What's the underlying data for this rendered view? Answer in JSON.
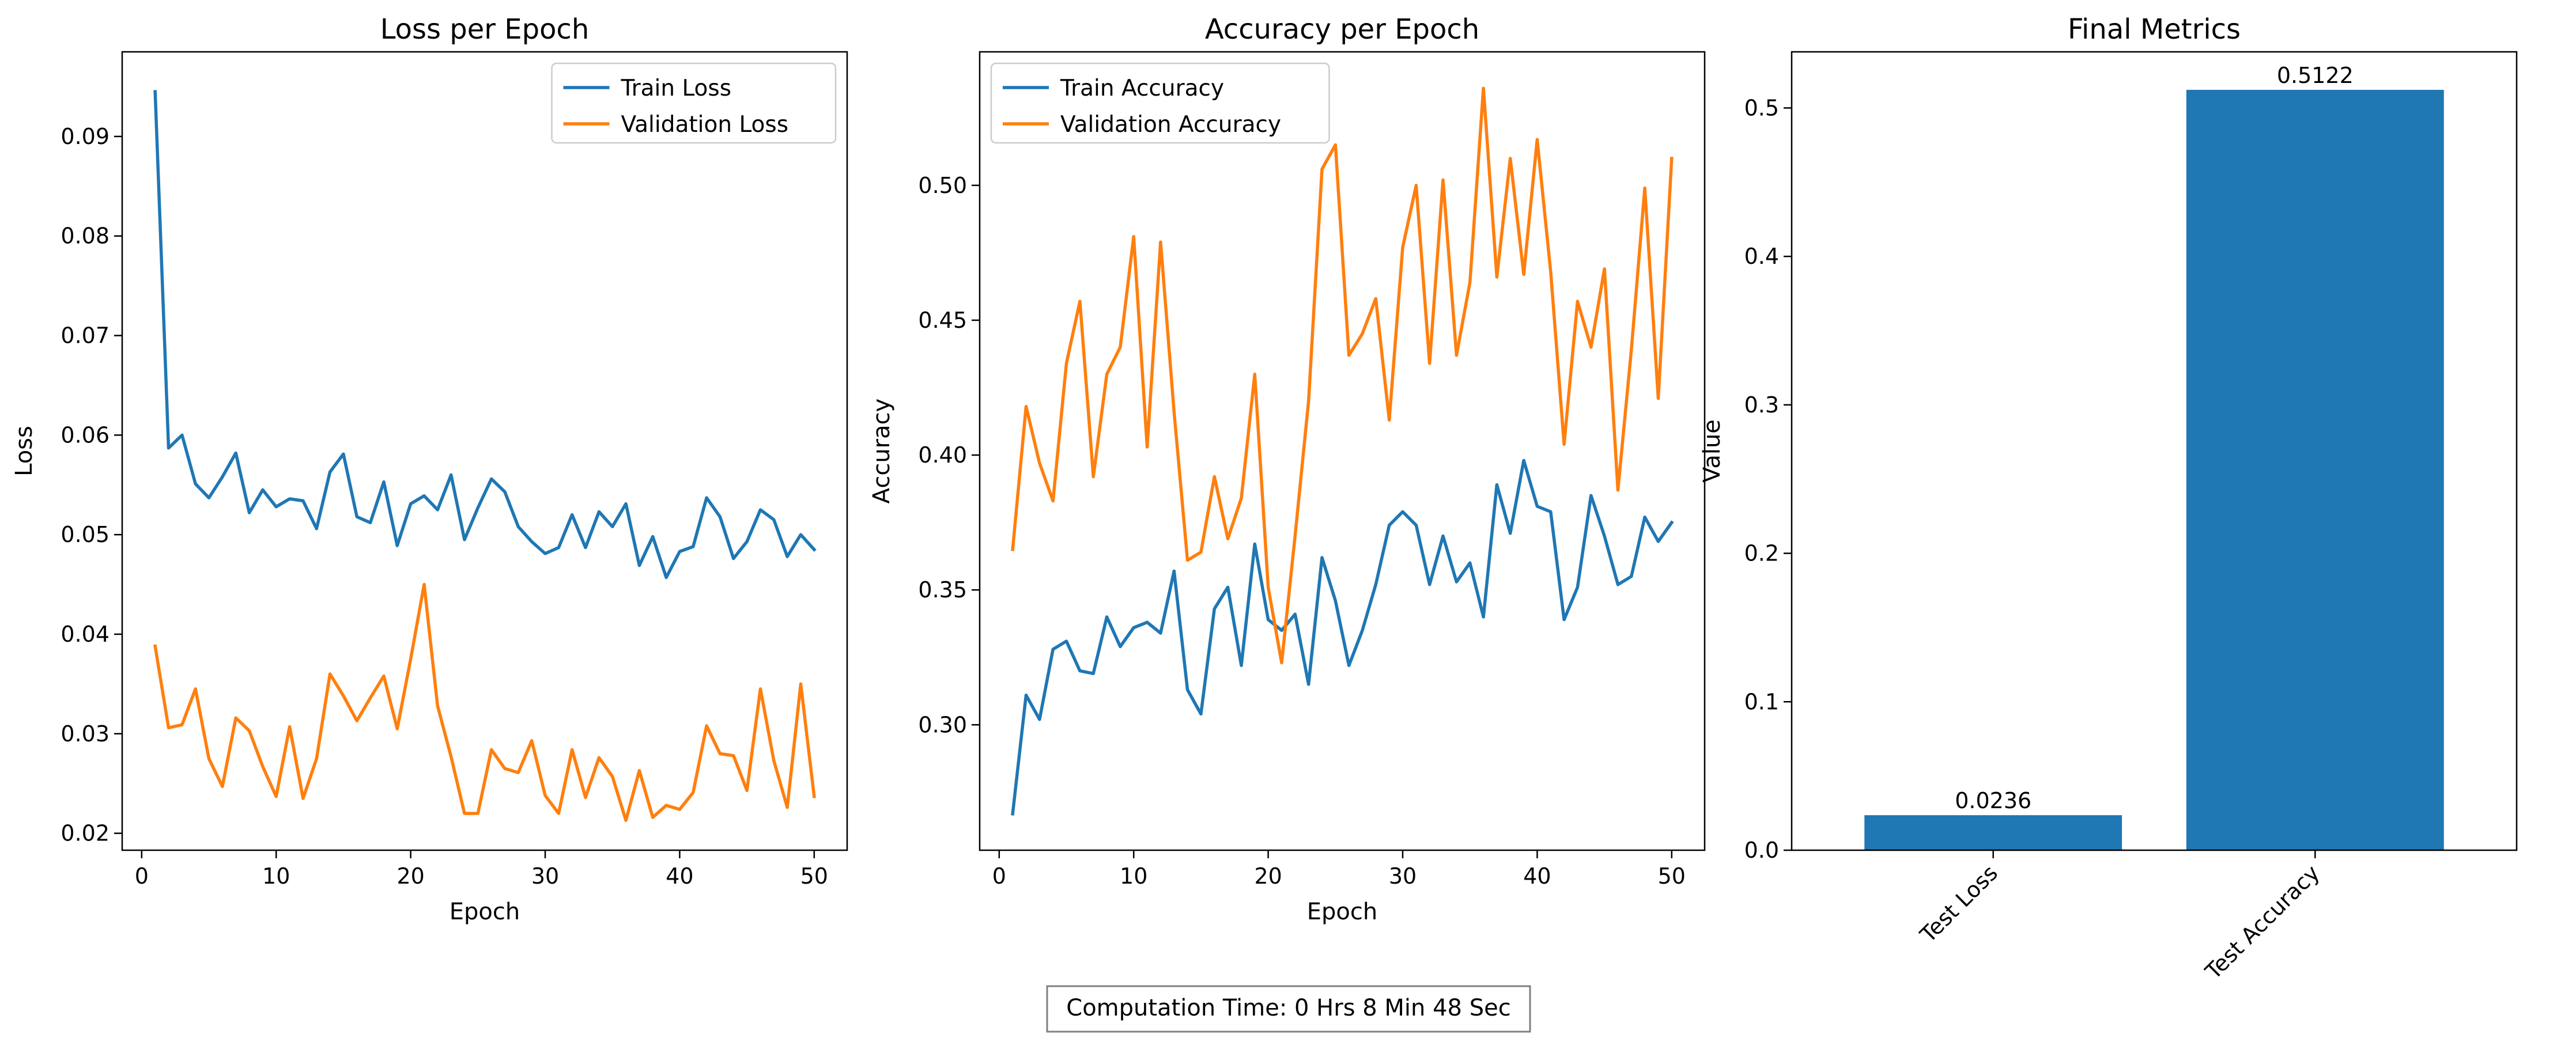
{
  "chart_data": [
    {
      "type": "line",
      "title": "Loss per Epoch",
      "xlabel": "Epoch",
      "ylabel": "Loss",
      "xlim": [
        -1.45,
        52.45
      ],
      "ylim": [
        0.0183,
        0.0985
      ],
      "xticks": [
        0,
        10,
        20,
        30,
        40,
        50
      ],
      "yticks": [
        0.02,
        0.03,
        0.04,
        0.05,
        0.06,
        0.07,
        0.08,
        0.09
      ],
      "legend": "top-right",
      "x": [
        1,
        2,
        3,
        4,
        5,
        6,
        7,
        8,
        9,
        10,
        11,
        12,
        13,
        14,
        15,
        16,
        17,
        18,
        19,
        20,
        21,
        22,
        23,
        24,
        25,
        26,
        27,
        28,
        29,
        30,
        31,
        32,
        33,
        34,
        35,
        36,
        37,
        38,
        39,
        40,
        41,
        42,
        43,
        44,
        45,
        46,
        47,
        48,
        49,
        50
      ],
      "series": [
        {
          "name": "Train Loss",
          "color": "#1f77b4",
          "values": [
            0.0945,
            0.0587,
            0.06,
            0.0551,
            0.0537,
            0.0558,
            0.0582,
            0.0522,
            0.0545,
            0.0528,
            0.0536,
            0.0534,
            0.0506,
            0.0563,
            0.0581,
            0.0518,
            0.0512,
            0.0553,
            0.0489,
            0.0531,
            0.0539,
            0.0525,
            0.056,
            0.0495,
            0.0527,
            0.0556,
            0.0543,
            0.0508,
            0.0493,
            0.0481,
            0.0487,
            0.052,
            0.0487,
            0.0523,
            0.0508,
            0.0531,
            0.0469,
            0.0498,
            0.0457,
            0.0483,
            0.0488,
            0.0537,
            0.0518,
            0.0476,
            0.0493,
            0.0525,
            0.0515,
            0.0478,
            0.05,
            0.0485
          ]
        },
        {
          "name": "Validation Loss",
          "color": "#ff7f0e",
          "values": [
            0.0388,
            0.0306,
            0.0309,
            0.0345,
            0.0275,
            0.0247,
            0.0316,
            0.0303,
            0.0267,
            0.0237,
            0.0307,
            0.0235,
            0.0275,
            0.036,
            0.0338,
            0.0313,
            0.0336,
            0.0358,
            0.0305,
            0.0375,
            0.045,
            0.0328,
            0.0277,
            0.022,
            0.022,
            0.0284,
            0.0265,
            0.0261,
            0.0293,
            0.0238,
            0.022,
            0.0284,
            0.0236,
            0.0276,
            0.0257,
            0.0213,
            0.0263,
            0.0216,
            0.0228,
            0.0224,
            0.0241,
            0.0308,
            0.028,
            0.0278,
            0.0243,
            0.0345,
            0.0273,
            0.0226,
            0.035,
            0.0237
          ]
        }
      ]
    },
    {
      "type": "line",
      "title": "Accuracy per Epoch",
      "xlabel": "Epoch",
      "ylabel": "Accuracy",
      "xlim": [
        -1.45,
        52.45
      ],
      "ylim": [
        0.2535,
        0.5495
      ],
      "xticks": [
        0,
        10,
        20,
        30,
        40,
        50
      ],
      "yticks": [
        0.3,
        0.35,
        0.4,
        0.45,
        0.5
      ],
      "legend": "top-left",
      "x": [
        1,
        2,
        3,
        4,
        5,
        6,
        7,
        8,
        9,
        10,
        11,
        12,
        13,
        14,
        15,
        16,
        17,
        18,
        19,
        20,
        21,
        22,
        23,
        24,
        25,
        26,
        27,
        28,
        29,
        30,
        31,
        32,
        33,
        34,
        35,
        36,
        37,
        38,
        39,
        40,
        41,
        42,
        43,
        44,
        45,
        46,
        47,
        48,
        49,
        50
      ],
      "series": [
        {
          "name": "Train Accuracy",
          "color": "#1f77b4",
          "values": [
            0.267,
            0.311,
            0.302,
            0.328,
            0.331,
            0.32,
            0.319,
            0.34,
            0.329,
            0.336,
            0.338,
            0.334,
            0.357,
            0.313,
            0.304,
            0.343,
            0.351,
            0.322,
            0.367,
            0.339,
            0.335,
            0.341,
            0.315,
            0.362,
            0.346,
            0.322,
            0.335,
            0.352,
            0.374,
            0.379,
            0.374,
            0.352,
            0.37,
            0.353,
            0.36,
            0.34,
            0.389,
            0.371,
            0.398,
            0.381,
            0.379,
            0.339,
            0.351,
            0.385,
            0.37,
            0.352,
            0.355,
            0.377,
            0.368,
            0.375
          ]
        },
        {
          "name": "Validation Accuracy",
          "color": "#ff7f0e",
          "values": [
            0.365,
            0.418,
            0.397,
            0.383,
            0.434,
            0.457,
            0.392,
            0.43,
            0.44,
            0.481,
            0.403,
            0.479,
            0.416,
            0.361,
            0.364,
            0.392,
            0.369,
            0.384,
            0.43,
            0.351,
            0.323,
            0.37,
            0.42,
            0.506,
            0.515,
            0.437,
            0.445,
            0.458,
            0.413,
            0.477,
            0.5,
            0.434,
            0.502,
            0.437,
            0.464,
            0.536,
            0.466,
            0.51,
            0.467,
            0.517,
            0.468,
            0.404,
            0.457,
            0.44,
            0.469,
            0.387,
            0.439,
            0.499,
            0.421,
            0.51
          ]
        }
      ]
    },
    {
      "type": "bar",
      "title": "Final Metrics",
      "xlabel": "",
      "ylabel": "Value",
      "ylim": [
        0,
        0.5378
      ],
      "yticks": [
        0.0,
        0.1,
        0.2,
        0.3,
        0.4,
        0.5
      ],
      "categories": [
        "Test Loss",
        "Test Accuracy"
      ],
      "values": [
        0.0236,
        0.5122
      ],
      "value_labels": [
        "0.0236",
        "0.5122"
      ],
      "color": "#1f77b4"
    }
  ],
  "footer": {
    "computation_time": "Computation Time: 0 Hrs 8 Min 48 Sec"
  }
}
